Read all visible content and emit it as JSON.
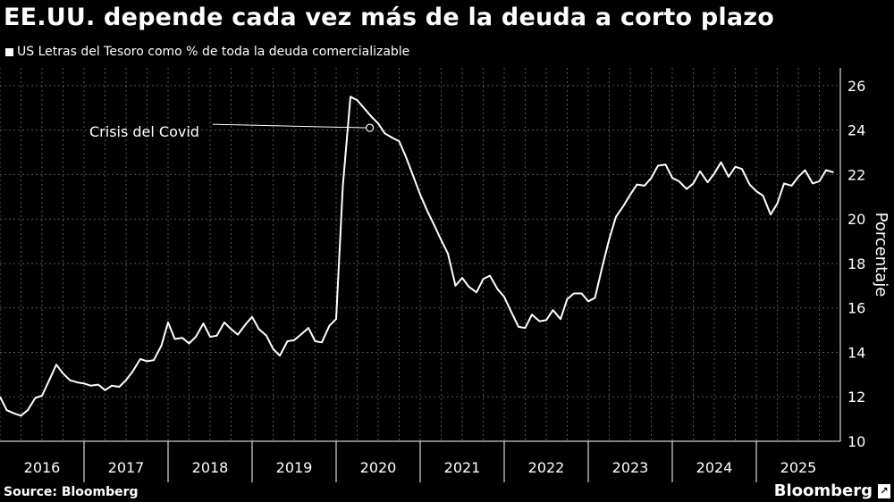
{
  "header": {
    "title": "EE.UU. depende cada vez más de la deuda a corto plazo",
    "legend_label": "US Letras del Tesoro como % de toda la deuda comercializable"
  },
  "footer": {
    "source": "Source: Bloomberg",
    "brand": "Bloomberg"
  },
  "colors": {
    "background": "#000000",
    "line": "#ffffff",
    "grid": "#555555"
  },
  "chart_data": {
    "type": "line",
    "title": "EE.UU. depende cada vez más de la deuda a corto plazo",
    "ylabel": "Porcentaje",
    "xlabel": "",
    "ylim": [
      10,
      26.8
    ],
    "xlim": [
      2016.0,
      2026.0
    ],
    "yticks": [
      10,
      12,
      14,
      16,
      18,
      20,
      22,
      24,
      26
    ],
    "year_labels": [
      "2016",
      "2017",
      "2018",
      "2019",
      "2020",
      "2021",
      "2022",
      "2023",
      "2024",
      "2025"
    ],
    "grid": true,
    "legend_position": "top-left",
    "annotation": {
      "text": "Crisis del Covid",
      "x": 2020.4,
      "y": 24.1
    },
    "series": [
      {
        "name": "US Letras del Tesoro como % de toda la deuda comercializable",
        "x": [
          2016.0,
          2016.08,
          2016.17,
          2016.25,
          2016.33,
          2016.42,
          2016.5,
          2016.58,
          2016.67,
          2016.75,
          2016.83,
          2016.92,
          2017.0,
          2017.08,
          2017.17,
          2017.25,
          2017.33,
          2017.42,
          2017.5,
          2017.58,
          2017.67,
          2017.75,
          2017.83,
          2017.92,
          2018.0,
          2018.08,
          2018.17,
          2018.25,
          2018.33,
          2018.42,
          2018.5,
          2018.58,
          2018.67,
          2018.75,
          2018.83,
          2018.92,
          2019.0,
          2019.08,
          2019.17,
          2019.25,
          2019.33,
          2019.42,
          2019.5,
          2019.58,
          2019.67,
          2019.75,
          2019.83,
          2019.92,
          2020.0,
          2020.08,
          2020.17,
          2020.25,
          2020.33,
          2020.42,
          2020.5,
          2020.58,
          2020.67,
          2020.75,
          2020.83,
          2020.92,
          2021.0,
          2021.08,
          2021.17,
          2021.25,
          2021.33,
          2021.42,
          2021.5,
          2021.58,
          2021.67,
          2021.75,
          2021.83,
          2021.92,
          2022.0,
          2022.08,
          2022.17,
          2022.25,
          2022.33,
          2022.42,
          2022.5,
          2022.58,
          2022.67,
          2022.75,
          2022.83,
          2022.92,
          2023.0,
          2023.08,
          2023.17,
          2023.25,
          2023.33,
          2023.42,
          2023.5,
          2023.58,
          2023.67,
          2023.75,
          2023.83,
          2023.92,
          2024.0,
          2024.08,
          2024.17,
          2024.25,
          2024.33,
          2024.42,
          2024.5,
          2024.58,
          2024.67,
          2024.75,
          2024.83,
          2024.92,
          2025.0,
          2025.08,
          2025.17,
          2025.25,
          2025.33,
          2025.42,
          2025.5,
          2025.58,
          2025.67,
          2025.75,
          2025.83,
          2025.92
        ],
        "y": [
          12.0,
          11.4,
          11.25,
          11.15,
          11.4,
          11.95,
          12.05,
          12.7,
          13.45,
          13.05,
          12.75,
          12.65,
          12.6,
          12.5,
          12.55,
          12.3,
          12.5,
          12.45,
          12.75,
          13.15,
          13.7,
          13.6,
          13.65,
          14.3,
          15.35,
          14.6,
          14.65,
          14.4,
          14.7,
          15.3,
          14.7,
          14.75,
          15.35,
          15.05,
          14.8,
          15.25,
          15.6,
          15.05,
          14.75,
          14.15,
          13.85,
          14.5,
          14.55,
          14.8,
          15.1,
          14.5,
          14.45,
          15.2,
          15.5,
          21.5,
          25.5,
          25.35,
          25.0,
          24.6,
          24.3,
          23.85,
          23.65,
          23.5,
          22.8,
          21.9,
          21.1,
          20.4,
          19.7,
          19.05,
          18.45,
          17.0,
          17.35,
          16.95,
          16.7,
          17.3,
          17.45,
          16.85,
          16.5,
          15.85,
          15.15,
          15.1,
          15.7,
          15.4,
          15.45,
          15.9,
          15.5,
          16.4,
          16.65,
          16.65,
          16.3,
          16.45,
          17.9,
          19.1,
          20.1,
          20.6,
          21.1,
          21.55,
          21.5,
          21.85,
          22.4,
          22.45,
          21.85,
          21.7,
          21.35,
          21.6,
          22.15,
          21.65,
          22.05,
          22.55,
          21.9,
          22.35,
          22.25,
          21.55,
          21.25,
          21.05,
          20.2,
          20.7,
          21.6,
          21.5,
          21.9,
          22.2,
          21.6,
          21.7,
          22.2,
          22.1
        ]
      }
    ]
  }
}
